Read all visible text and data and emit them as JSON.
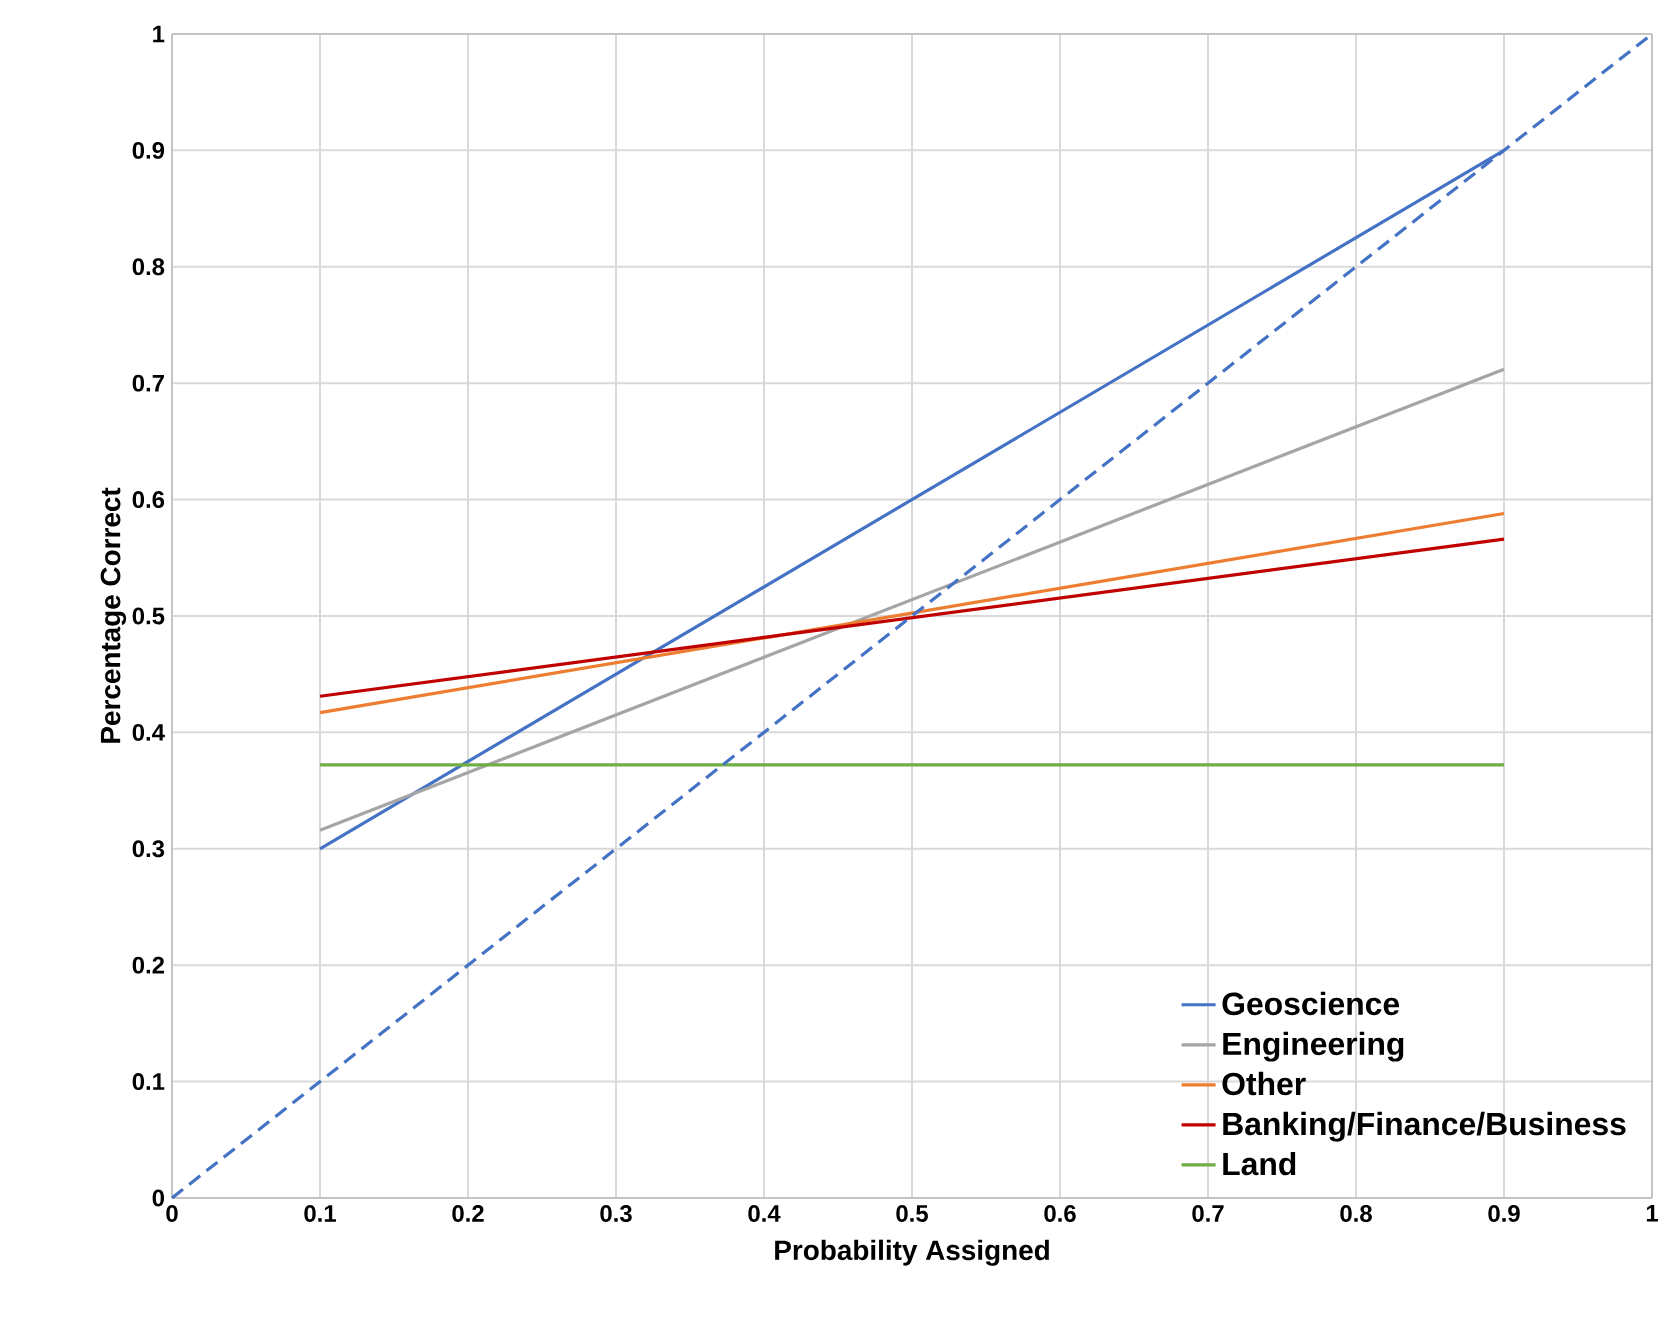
{
  "chart_data": {
    "type": "line",
    "xlabel": "Probability Assigned",
    "ylabel": "Percentage Correct",
    "xlim": [
      0,
      1
    ],
    "ylim": [
      0,
      1
    ],
    "xticks": [
      0,
      0.1,
      0.2,
      0.3,
      0.4,
      0.5,
      0.6,
      0.7,
      0.8,
      0.9,
      1
    ],
    "yticks": [
      0,
      0.1,
      0.2,
      0.3,
      0.4,
      0.5,
      0.6,
      0.7,
      0.8,
      0.9,
      1
    ],
    "grid": true,
    "legend": "bottom right",
    "marker": "none",
    "series": [
      {
        "name": "Geoscience",
        "color": "#4472c4",
        "x": [
          0.1,
          0.9
        ],
        "values": [
          0.3,
          0.9
        ]
      },
      {
        "name": "Engineering",
        "color": "#a5a5a5",
        "x": [
          0.1,
          0.9
        ],
        "values": [
          0.316,
          0.712
        ]
      },
      {
        "name": "Other",
        "color": "#ed7d31",
        "x": [
          0.1,
          0.9
        ],
        "values": [
          0.417,
          0.588
        ]
      },
      {
        "name": "Banking/Finance/Business",
        "color": "#c00000",
        "x": [
          0.1,
          0.9
        ],
        "values": [
          0.431,
          0.566
        ]
      },
      {
        "name": "Land",
        "color": "#70ad47",
        "x": [
          0.1,
          0.9
        ],
        "values": [
          0.372,
          0.372
        ]
      },
      {
        "color": "#4472c4",
        "x": [
          0,
          1
        ],
        "values": [
          0,
          1
        ],
        "line_style": "dashed"
      }
    ]
  }
}
